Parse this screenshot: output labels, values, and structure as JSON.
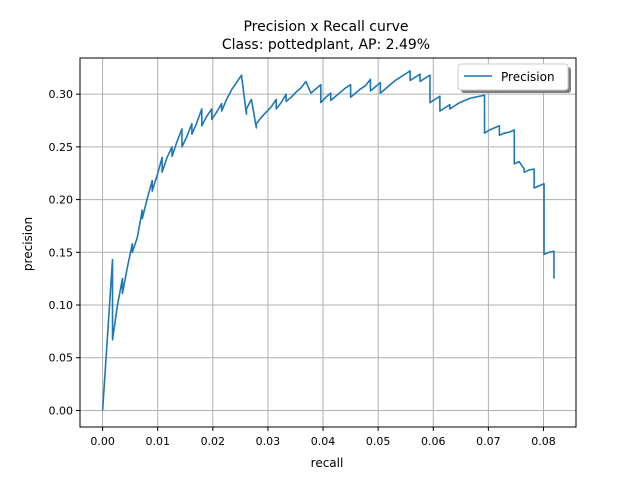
{
  "chart_data": {
    "type": "line",
    "title": "Precision x Recall curve",
    "subtitle": "Class: pottedplant, AP: 2.49%",
    "xlabel": "recall",
    "ylabel": "precision",
    "xlim": [
      -0.0041,
      0.0859
    ],
    "ylim": [
      -0.0157,
      0.3343
    ],
    "xticks": [
      0.0,
      0.01,
      0.02,
      0.03,
      0.04,
      0.05,
      0.06,
      0.07,
      0.08
    ],
    "xtick_labels": [
      "0.00",
      "0.01",
      "0.02",
      "0.03",
      "0.04",
      "0.05",
      "0.06",
      "0.07",
      "0.08"
    ],
    "yticks": [
      0.0,
      0.05,
      0.1,
      0.15,
      0.2,
      0.25,
      0.3
    ],
    "ytick_labels": [
      "0.00",
      "0.05",
      "0.10",
      "0.15",
      "0.20",
      "0.25",
      "0.30"
    ],
    "grid": true,
    "legend_position": "top-right",
    "series": [
      {
        "name": "Precision",
        "color": "#1f77b4",
        "x": [
          0.0,
          0.0018,
          0.0018,
          0.0027,
          0.0036,
          0.0036,
          0.0045,
          0.0054,
          0.0054,
          0.0063,
          0.0072,
          0.0072,
          0.0081,
          0.009,
          0.009,
          0.0099,
          0.0108,
          0.0108,
          0.0117,
          0.0126,
          0.0126,
          0.0135,
          0.0144,
          0.0144,
          0.0153,
          0.0162,
          0.0162,
          0.0171,
          0.018,
          0.018,
          0.0189,
          0.0198,
          0.0198,
          0.0207,
          0.0216,
          0.0216,
          0.0225,
          0.0234,
          0.0243,
          0.0252,
          0.0261,
          0.0261,
          0.027,
          0.0279,
          0.0279,
          0.0288,
          0.0297,
          0.0306,
          0.0315,
          0.0315,
          0.0324,
          0.0333,
          0.0333,
          0.0342,
          0.0351,
          0.036,
          0.0369,
          0.0378,
          0.0387,
          0.0396,
          0.0396,
          0.0405,
          0.0414,
          0.0414,
          0.0423,
          0.0432,
          0.0441,
          0.045,
          0.045,
          0.0459,
          0.0468,
          0.0477,
          0.0486,
          0.0486,
          0.0495,
          0.0504,
          0.0504,
          0.0513,
          0.0522,
          0.0531,
          0.054,
          0.0549,
          0.0558,
          0.0558,
          0.0567,
          0.0576,
          0.0576,
          0.0585,
          0.0594,
          0.0594,
          0.0603,
          0.0612,
          0.0612,
          0.0621,
          0.063,
          0.063,
          0.0639,
          0.0648,
          0.0657,
          0.0666,
          0.0675,
          0.0684,
          0.0693,
          0.0693,
          0.0702,
          0.0711,
          0.072,
          0.072,
          0.0729,
          0.0738,
          0.0747,
          0.0747,
          0.0756,
          0.0765,
          0.0765,
          0.0774,
          0.0783,
          0.0783,
          0.0792,
          0.0801,
          0.0801,
          0.081,
          0.0819,
          0.0819
        ],
        "y": [
          0.0,
          0.143,
          0.067,
          0.1,
          0.125,
          0.111,
          0.136,
          0.158,
          0.15,
          0.164,
          0.19,
          0.182,
          0.201,
          0.218,
          0.208,
          0.223,
          0.24,
          0.226,
          0.24,
          0.25,
          0.241,
          0.255,
          0.267,
          0.25,
          0.26,
          0.272,
          0.262,
          0.273,
          0.286,
          0.27,
          0.279,
          0.286,
          0.276,
          0.283,
          0.291,
          0.284,
          0.295,
          0.304,
          0.311,
          0.318,
          0.281,
          0.286,
          0.295,
          0.268,
          0.272,
          0.278,
          0.283,
          0.288,
          0.295,
          0.286,
          0.292,
          0.3,
          0.293,
          0.297,
          0.302,
          0.306,
          0.312,
          0.301,
          0.305,
          0.309,
          0.292,
          0.297,
          0.301,
          0.294,
          0.298,
          0.302,
          0.306,
          0.309,
          0.297,
          0.301,
          0.305,
          0.308,
          0.314,
          0.303,
          0.307,
          0.311,
          0.301,
          0.305,
          0.309,
          0.313,
          0.316,
          0.319,
          0.322,
          0.313,
          0.316,
          0.319,
          0.312,
          0.315,
          0.318,
          0.292,
          0.295,
          0.298,
          0.284,
          0.287,
          0.29,
          0.286,
          0.289,
          0.292,
          0.294,
          0.296,
          0.297,
          0.298,
          0.299,
          0.263,
          0.266,
          0.268,
          0.27,
          0.261,
          0.263,
          0.264,
          0.266,
          0.234,
          0.236,
          0.229,
          0.226,
          0.228,
          0.229,
          0.211,
          0.213,
          0.215,
          0.148,
          0.15,
          0.151,
          0.125
        ]
      }
    ]
  }
}
